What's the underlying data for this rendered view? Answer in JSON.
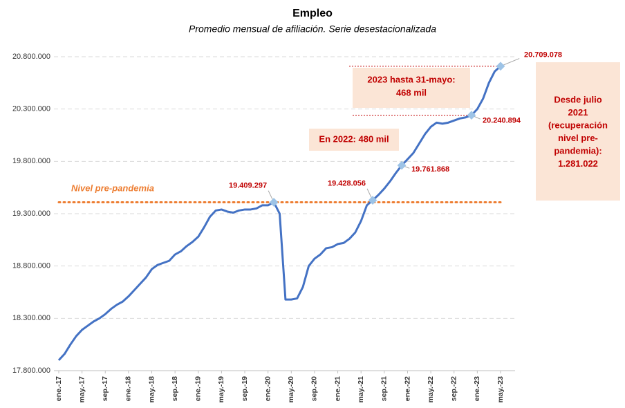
{
  "chart_data": {
    "type": "line",
    "title": "Empleo",
    "subtitle": "Promedio mensual de afiliación. Serie desestacionalizada",
    "categories": [
      "ene.-17",
      null,
      null,
      null,
      "may.-17",
      null,
      null,
      null,
      "sep.-17",
      null,
      null,
      null,
      "ene.-18",
      null,
      null,
      null,
      "may.-18",
      null,
      null,
      null,
      "sep.-18",
      null,
      null,
      null,
      "ene.-19",
      null,
      null,
      null,
      "may.-19",
      null,
      null,
      null,
      "sep.-19",
      null,
      null,
      null,
      "ene.-20",
      null,
      null,
      null,
      "may.-20",
      null,
      null,
      null,
      "sep.-20",
      null,
      null,
      null,
      "ene.-21",
      null,
      null,
      null,
      "may.-21",
      null,
      null,
      null,
      "sep.-21",
      null,
      null,
      null,
      "ene.-22",
      null,
      null,
      null,
      "may.-22",
      null,
      null,
      null,
      "sep.-22",
      null,
      null,
      null,
      "ene.-23",
      null,
      null,
      null,
      "may.-23"
    ],
    "series": [
      {
        "name": "Afiliación",
        "color": "#4472c4",
        "values": [
          17900000,
          17960000,
          18050000,
          18130000,
          18190000,
          18230000,
          18270000,
          18300000,
          18340000,
          18390000,
          18430000,
          18460000,
          18510000,
          18570000,
          18630000,
          18690000,
          18770000,
          18810000,
          18830000,
          18850000,
          18910000,
          18940000,
          18990000,
          19030000,
          19080000,
          19170000,
          19270000,
          19330000,
          19340000,
          19320000,
          19310000,
          19330000,
          19340000,
          19340000,
          19350000,
          19380000,
          19380000,
          19409297,
          19300000,
          18480000,
          18480000,
          18490000,
          18600000,
          18800000,
          18870000,
          18910000,
          18970000,
          18980000,
          19010000,
          19020000,
          19060000,
          19120000,
          19230000,
          19380000,
          19428056,
          19480000,
          19540000,
          19610000,
          19690000,
          19761868,
          19820000,
          19880000,
          19970000,
          20060000,
          20130000,
          20170000,
          20160000,
          20170000,
          20190000,
          20210000,
          20220000,
          20240894,
          20300000,
          20400000,
          20550000,
          20660000,
          20709078
        ],
        "value_labels": [
          null,
          null,
          null,
          null,
          null,
          null,
          null,
          null,
          null,
          null,
          null,
          null,
          null,
          null,
          null,
          null,
          null,
          null,
          null,
          null,
          null,
          null,
          null,
          null,
          null,
          null,
          null,
          null,
          null,
          null,
          null,
          null,
          null,
          null,
          null,
          null,
          null,
          "19.409.297",
          null,
          null,
          null,
          null,
          null,
          null,
          null,
          null,
          null,
          null,
          null,
          null,
          null,
          null,
          null,
          null,
          "19.428.056",
          null,
          null,
          null,
          null,
          "19.761.868",
          null,
          null,
          null,
          null,
          null,
          null,
          null,
          null,
          null,
          null,
          null,
          "20.240.894",
          null,
          null,
          null,
          null,
          "20.709.078"
        ]
      }
    ],
    "marker_color": "#9dc3e6",
    "ylim": [
      17800000,
      20800000
    ],
    "yticks": [
      {
        "value": 17800000,
        "label": "17.800.000"
      },
      {
        "value": 18300000,
        "label": "18.300.000"
      },
      {
        "value": 18800000,
        "label": "18.800.000"
      },
      {
        "value": 19300000,
        "label": "19.300.000"
      },
      {
        "value": 19800000,
        "label": "19.800.000"
      },
      {
        "value": 20300000,
        "label": "20.300.000"
      },
      {
        "value": 20800000,
        "label": "20.800.000"
      }
    ],
    "grid": true,
    "reference_line": {
      "label": "Nivel pre-pandemia",
      "value": 19409297,
      "color": "#ed7d31"
    },
    "annotations": [
      {
        "lines": [
          "2023 hasta 31-mayo:",
          "468 mil"
        ]
      },
      {
        "lines": [
          "En 2022: 480 mil"
        ]
      },
      {
        "lines": [
          "Desde julio",
          "2021",
          "(recuperación",
          "nivel pre-",
          "pandemia):",
          "1.281.022"
        ]
      }
    ]
  }
}
